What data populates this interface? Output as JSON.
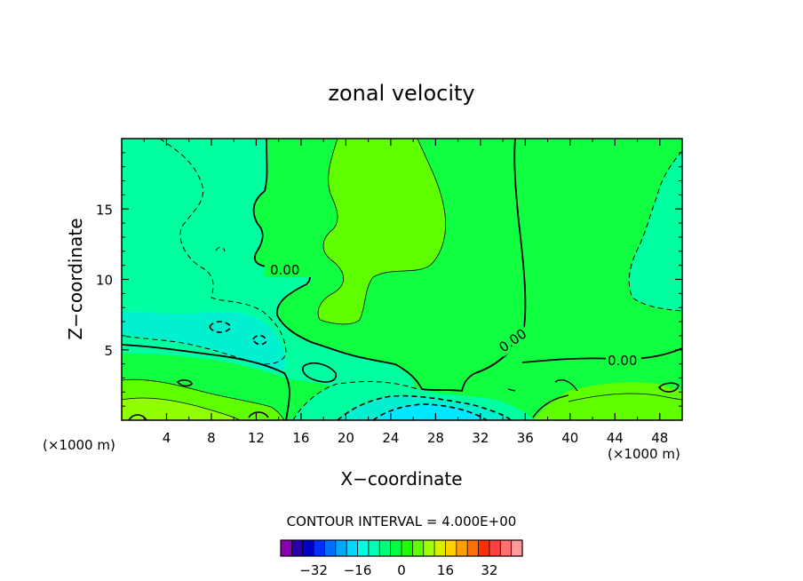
{
  "chart_data": {
    "type": "contour",
    "title": "zonal velocity",
    "xlabel": "X−coordinate",
    "ylabel": "Z−coordinate",
    "x_unit_left": "(×1000 m)",
    "x_unit_right": "(×1000 m)",
    "xlim": [
      0,
      50
    ],
    "ylim": [
      0,
      20
    ],
    "x_ticks": [
      4,
      8,
      12,
      16,
      20,
      24,
      28,
      32,
      36,
      40,
      44,
      48
    ],
    "x_tick_labels": [
      "4",
      "8",
      "12",
      "16",
      "20",
      "24",
      "28",
      "32",
      "36",
      "40",
      "44",
      "48"
    ],
    "y_ticks": [
      5,
      10,
      15
    ],
    "y_tick_labels": [
      "5",
      "10",
      "15"
    ],
    "contour_labels": [
      "0.00",
      "0.00",
      "0.00"
    ],
    "contour_interval_text": "CONTOUR INTERVAL = 4.000E+00",
    "colorbar": {
      "colors": [
        "#8a00b0",
        "#2a00a8",
        "#0000c8",
        "#0030ff",
        "#0070ff",
        "#00a8ff",
        "#00d8ff",
        "#00ffe0",
        "#00ffb0",
        "#00ff78",
        "#00ff40",
        "#20ff00",
        "#60ff00",
        "#a0ff00",
        "#d8f000",
        "#ffd000",
        "#ffa000",
        "#ff7000",
        "#ff3000",
        "#ff4040",
        "#ff7070",
        "#ff9a9a"
      ],
      "ticks": [
        -32,
        -16,
        0,
        16,
        32
      ],
      "tick_labels": [
        "−32",
        "−16",
        "0",
        "16",
        "32"
      ],
      "vmin": -44,
      "vmax": 44
    },
    "fill_colors": {
      "background": "#10ff40",
      "cyan_band": "#00ffa0",
      "deep_cyan": "#00f0d0",
      "core_cyan": "#00e8ff",
      "light_green": "#60ff00",
      "yellow_green": "#90ff00"
    }
  }
}
